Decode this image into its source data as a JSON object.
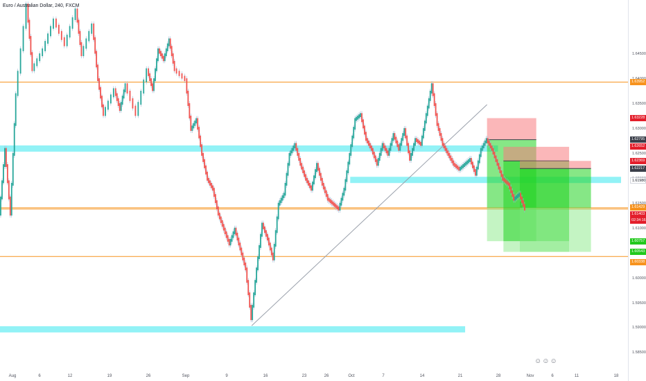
{
  "symbol_title": "Euro / Australian Dollar, 240, FXCM",
  "icons": [
    "face-icon",
    "face-icon",
    "face-icon"
  ],
  "chart_data": {
    "type": "candlestick",
    "title": "Euro / Australian Dollar, 240, FXCM",
    "timeframe": "240",
    "source": "FXCM",
    "ylim": [
      1.582,
      1.656
    ],
    "y_ticks": [
      "1.64500",
      "1.64000",
      "1.63500",
      "1.63000",
      "1.62500",
      "1.62000",
      "1.61500",
      "1.61000",
      "1.60500",
      "1.60000",
      "1.59500",
      "1.59000",
      "1.58500"
    ],
    "x_ticks": [
      "Aug",
      "6",
      "12",
      "19",
      "26",
      "Sep",
      "9",
      "16",
      "23",
      "26",
      "Oct",
      "7",
      "14",
      "21",
      "28",
      "Nov",
      "6",
      "11",
      "18"
    ],
    "price_tags": [
      {
        "text": "1.63952",
        "style": "orange",
        "value": 1.63952
      },
      {
        "text": "1.63228",
        "style": "red",
        "value": 1.63228
      },
      {
        "text": "1.62795",
        "style": "dark",
        "value": 1.62795
      },
      {
        "text": "1.62652",
        "style": "red",
        "value": 1.62652
      },
      {
        "text": "1.62369",
        "style": "red",
        "value": 1.62369
      },
      {
        "text": "1.62217",
        "style": "dark",
        "value": 1.62217
      },
      {
        "text": "1.61980",
        "style": "white",
        "value": 1.6198
      },
      {
        "text": "1.61429",
        "style": "orange",
        "value": 1.61429
      },
      {
        "text": "1.61403",
        "style": "red",
        "value": 1.61403
      },
      {
        "text": "02:34:16",
        "style": "red",
        "value": 1.61303
      },
      {
        "text": "1.60757",
        "style": "green",
        "value": 1.60757
      },
      {
        "text": "1.60543",
        "style": "green",
        "value": 1.60543
      },
      {
        "text": "1.60338",
        "style": "orange",
        "value": 1.60338
      }
    ],
    "horizontal_lines": [
      {
        "value": 1.63952,
        "color": "#f7931e"
      },
      {
        "value": 1.61429,
        "color": "#f7931e"
      },
      {
        "value": 1.61403,
        "color": "#f7931e"
      },
      {
        "value": 1.6045,
        "color": "#f7931e"
      }
    ],
    "zones": [
      {
        "x0": "Jul 29",
        "x1": "Oct 28",
        "y0": 1.626,
        "y1": 1.6268,
        "color": "#7ff0f5"
      },
      {
        "x0": "Oct 1",
        "x1": "Nov 20",
        "y0": 1.6197,
        "y1": 1.6205,
        "color": "#7ff0f5"
      },
      {
        "x0": "Jul 29",
        "x1": "Oct 22",
        "y0": 1.5897,
        "y1": 1.5905,
        "color": "#7ff0f5"
      }
    ],
    "trendline": {
      "x0": "Sep 13",
      "y0": 1.5906,
      "x1": "Oct 26",
      "y1": 1.635,
      "color": "#9aa0ab"
    },
    "positions": [
      {
        "x0": "Oct 26",
        "x1": "Nov 4",
        "entry": 1.62795,
        "stop": 1.63228,
        "t1": 1.61429,
        "t2": 1.60757
      },
      {
        "x0": "Oct 29",
        "x1": "Nov 10",
        "entry": 1.62369,
        "stop": 1.62652,
        "t1": 1.60757,
        "t2": 1.60543
      },
      {
        "x0": "Nov 1",
        "x1": "Nov 14",
        "entry": 1.62217,
        "stop": 1.62369,
        "t1": 1.61429,
        "t2": 1.60543
      }
    ],
    "segments": [
      {
        "x": "Jul 29",
        "value": 1.613
      },
      {
        "x": "Jul 30",
        "value": 1.626
      },
      {
        "x": "Jul 31",
        "value": 1.613
      },
      {
        "x": "Aug 1",
        "value": 1.637
      },
      {
        "x": "Aug 3",
        "value": 1.655
      },
      {
        "x": "Aug 4",
        "value": 1.642
      },
      {
        "x": "Aug 6",
        "value": 1.646
      },
      {
        "x": "Aug 8",
        "value": 1.652
      },
      {
        "x": "Aug 10",
        "value": 1.647
      },
      {
        "x": "Aug 12",
        "value": 1.654
      },
      {
        "x": "Aug 13",
        "value": 1.645
      },
      {
        "x": "Aug 15",
        "value": 1.651
      },
      {
        "x": "Aug 16",
        "value": 1.64
      },
      {
        "x": "Aug 17",
        "value": 1.633
      },
      {
        "x": "Aug 19",
        "value": 1.638
      },
      {
        "x": "Aug 20",
        "value": 1.634
      },
      {
        "x": "Aug 21",
        "value": 1.639
      },
      {
        "x": "Aug 23",
        "value": 1.633
      },
      {
        "x": "Aug 25",
        "value": 1.642
      },
      {
        "x": "Aug 26",
        "value": 1.638
      },
      {
        "x": "Aug 27",
        "value": 1.646
      },
      {
        "x": "Aug 28",
        "value": 1.644
      },
      {
        "x": "Aug 29",
        "value": 1.648
      },
      {
        "x": "Aug 30",
        "value": 1.642
      },
      {
        "x": "Sep 1",
        "value": 1.64
      },
      {
        "x": "Sep 2",
        "value": 1.63
      },
      {
        "x": "Sep 3",
        "value": 1.632
      },
      {
        "x": "Sep 4",
        "value": 1.625
      },
      {
        "x": "Sep 5",
        "value": 1.62
      },
      {
        "x": "Sep 6",
        "value": 1.618
      },
      {
        "x": "Sep 7",
        "value": 1.613
      },
      {
        "x": "Sep 8",
        "value": 1.61
      },
      {
        "x": "Sep 9",
        "value": 1.607
      },
      {
        "x": "Sep 10",
        "value": 1.61
      },
      {
        "x": "Sep 11",
        "value": 1.606
      },
      {
        "x": "Sep 12",
        "value": 1.602
      },
      {
        "x": "Sep 13",
        "value": 1.592
      },
      {
        "x": "Sep 14",
        "value": 1.602
      },
      {
        "x": "Sep 15",
        "value": 1.611
      },
      {
        "x": "Sep 16",
        "value": 1.608
      },
      {
        "x": "Sep 17",
        "value": 1.604
      },
      {
        "x": "Sep 18",
        "value": 1.615
      },
      {
        "x": "Sep 19",
        "value": 1.617
      },
      {
        "x": "Sep 20",
        "value": 1.625
      },
      {
        "x": "Sep 21",
        "value": 1.627
      },
      {
        "x": "Sep 22",
        "value": 1.623
      },
      {
        "x": "Sep 23",
        "value": 1.62
      },
      {
        "x": "Sep 24",
        "value": 1.618
      },
      {
        "x": "Sep 25",
        "value": 1.623
      },
      {
        "x": "Sep 26",
        "value": 1.619
      },
      {
        "x": "Sep 27",
        "value": 1.616
      },
      {
        "x": "Sep 28",
        "value": 1.615
      },
      {
        "x": "Sep 29",
        "value": 1.614
      },
      {
        "x": "Sep 30",
        "value": 1.618
      },
      {
        "x": "Oct 1",
        "value": 1.625
      },
      {
        "x": "Oct 2",
        "value": 1.632
      },
      {
        "x": "Oct 3",
        "value": 1.633
      },
      {
        "x": "Oct 4",
        "value": 1.628
      },
      {
        "x": "Oct 5",
        "value": 1.626
      },
      {
        "x": "Oct 6",
        "value": 1.623
      },
      {
        "x": "Oct 7",
        "value": 1.627
      },
      {
        "x": "Oct 8",
        "value": 1.625
      },
      {
        "x": "Oct 9",
        "value": 1.629
      },
      {
        "x": "Oct 10",
        "value": 1.626
      },
      {
        "x": "Oct 11",
        "value": 1.63
      },
      {
        "x": "Oct 12",
        "value": 1.624
      },
      {
        "x": "Oct 13",
        "value": 1.628
      },
      {
        "x": "Oct 14",
        "value": 1.627
      },
      {
        "x": "Oct 15",
        "value": 1.633
      },
      {
        "x": "Oct 16",
        "value": 1.639
      },
      {
        "x": "Oct 17",
        "value": 1.631
      },
      {
        "x": "Oct 18",
        "value": 1.627
      },
      {
        "x": "Oct 19",
        "value": 1.625
      },
      {
        "x": "Oct 20",
        "value": 1.623
      },
      {
        "x": "Oct 21",
        "value": 1.622
      },
      {
        "x": "Oct 22",
        "value": 1.623
      },
      {
        "x": "Oct 23",
        "value": 1.624
      },
      {
        "x": "Oct 24",
        "value": 1.621
      },
      {
        "x": "Oct 25",
        "value": 1.626
      },
      {
        "x": "Oct 26",
        "value": 1.628
      },
      {
        "x": "Oct 27",
        "value": 1.626
      },
      {
        "x": "Oct 28",
        "value": 1.623
      },
      {
        "x": "Oct 29",
        "value": 1.62
      },
      {
        "x": "Oct 30",
        "value": 1.619
      },
      {
        "x": "Oct 31",
        "value": 1.616
      },
      {
        "x": "Nov 1",
        "value": 1.617
      },
      {
        "x": "Nov 2",
        "value": 1.614
      }
    ]
  }
}
